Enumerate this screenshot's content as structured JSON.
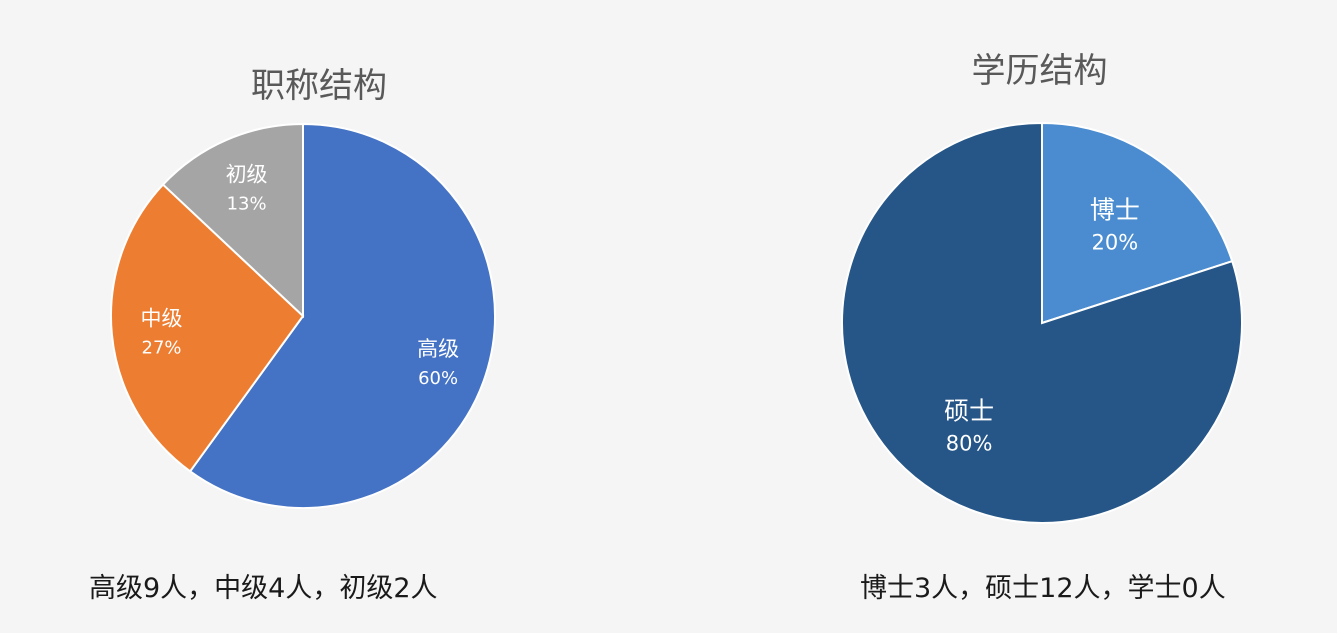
{
  "chart_data": [
    {
      "type": "pie",
      "title": "职称结构",
      "categories": [
        "高级",
        "中级",
        "初级"
      ],
      "values": [
        60,
        27,
        13
      ],
      "value_labels": [
        "60%",
        "27%",
        "13%"
      ],
      "colors": [
        "#4472c4",
        "#ed7d31",
        "#a5a5a5"
      ],
      "start_angle_deg": 0,
      "direction": "clockwise",
      "caption": "高级9人，中级4人，初级2人"
    },
    {
      "type": "pie",
      "title": "学历结构",
      "categories": [
        "博士",
        "硕士"
      ],
      "values": [
        20,
        80
      ],
      "value_labels": [
        "20%",
        "80%"
      ],
      "colors": [
        "#4a8ccf",
        "#255687"
      ],
      "start_angle_deg": 0,
      "direction": "clockwise",
      "caption": "博士3人，硕士12人，学士0人"
    }
  ]
}
